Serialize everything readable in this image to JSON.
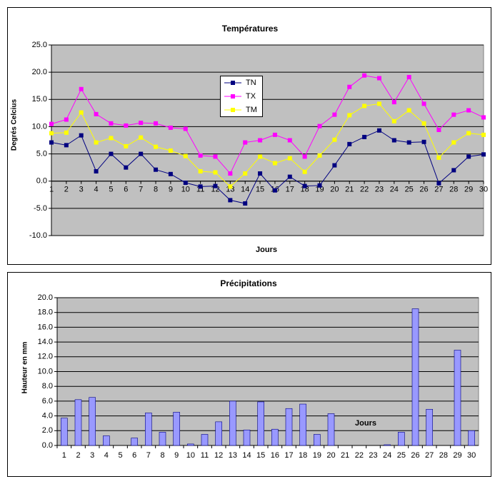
{
  "chart_data": [
    {
      "type": "line",
      "title": "Températures",
      "y_label": "Degrés Celcius",
      "x_label": "Jours",
      "categories": [
        "1",
        "2",
        "3",
        "4",
        "5",
        "6",
        "7",
        "8",
        "9",
        "10",
        "11",
        "12",
        "13",
        "14",
        "15",
        "16",
        "17",
        "18",
        "19",
        "20",
        "21",
        "22",
        "23",
        "24",
        "25",
        "26",
        "27",
        "28",
        "29",
        "30"
      ],
      "series": [
        {
          "name": "TN",
          "color": "#000080",
          "values": [
            7.1,
            6.6,
            8.4,
            1.8,
            5.0,
            2.5,
            5.0,
            2.1,
            1.3,
            -0.3,
            -1.0,
            -0.9,
            -3.5,
            -4.1,
            1.4,
            -1.7,
            0.8,
            -0.9,
            -0.8,
            2.9,
            6.8,
            8.1,
            9.3,
            7.5,
            7.1,
            7.2,
            -0.4,
            2.0,
            4.5,
            4.9
          ]
        },
        {
          "name": "TX",
          "color": "#ff00ff",
          "values": [
            10.5,
            11.3,
            16.9,
            12.3,
            10.6,
            10.2,
            10.7,
            10.6,
            9.8,
            9.6,
            4.7,
            4.5,
            1.4,
            7.1,
            7.5,
            8.5,
            7.5,
            4.5,
            10.1,
            12.2,
            17.3,
            19.4,
            18.9,
            14.5,
            19.1,
            14.2,
            9.4,
            12.2,
            13.0,
            11.7
          ]
        },
        {
          "name": "TM",
          "color": "#ffff00",
          "values": [
            8.8,
            8.9,
            12.6,
            7.1,
            7.9,
            6.4,
            8.0,
            6.3,
            5.6,
            4.6,
            1.8,
            1.6,
            -1.0,
            1.4,
            4.5,
            3.3,
            4.2,
            1.7,
            4.7,
            7.6,
            12.1,
            13.8,
            14.2,
            11.0,
            13.0,
            10.6,
            4.3,
            7.1,
            8.8,
            8.5
          ]
        }
      ],
      "ylim": [
        -10,
        25
      ],
      "yticks": [
        {
          "value": -10,
          "label": "-10.0"
        },
        {
          "value": -5,
          "label": "-5.0"
        },
        {
          "value": 0,
          "label": "0.0"
        },
        {
          "value": 5,
          "label": "5.0"
        },
        {
          "value": 10,
          "label": "10.0"
        },
        {
          "value": 15,
          "label": "15.0"
        },
        {
          "value": 20,
          "label": "20.0"
        },
        {
          "value": 25,
          "label": "25.0"
        }
      ],
      "grid": true,
      "legend": "top-center"
    },
    {
      "type": "bar",
      "title": "Précipitations",
      "y_label": "Hauteur en mm",
      "x_label": "Jours",
      "categories": [
        "1",
        "2",
        "3",
        "4",
        "5",
        "6",
        "7",
        "8",
        "9",
        "10",
        "11",
        "12",
        "13",
        "14",
        "15",
        "16",
        "17",
        "18",
        "19",
        "20",
        "21",
        "22",
        "23",
        "24",
        "25",
        "26",
        "27",
        "28",
        "29",
        "30"
      ],
      "values": [
        3.7,
        6.2,
        6.5,
        1.3,
        0,
        1.0,
        4.4,
        1.8,
        4.5,
        0.2,
        1.5,
        3.2,
        6.0,
        2.1,
        5.9,
        2.2,
        5.0,
        5.6,
        1.5,
        4.3,
        0,
        0,
        0,
        0.1,
        1.8,
        18.5,
        4.9,
        0,
        12.9,
        2.0
      ],
      "color": "#9999ff",
      "ylim": [
        0,
        20
      ],
      "yticks": [
        {
          "value": 0,
          "label": "0.0"
        },
        {
          "value": 2,
          "label": "2.0"
        },
        {
          "value": 4,
          "label": "4.0"
        },
        {
          "value": 6,
          "label": "6.0"
        },
        {
          "value": 8,
          "label": "8.0"
        },
        {
          "value": 10,
          "label": "10.0"
        },
        {
          "value": 12,
          "label": "12.0"
        },
        {
          "value": 14,
          "label": "14.0"
        },
        {
          "value": 16,
          "label": "16.0"
        },
        {
          "value": 18,
          "label": "18.0"
        },
        {
          "value": 20,
          "label": "20.0"
        }
      ],
      "grid": true
    }
  ]
}
